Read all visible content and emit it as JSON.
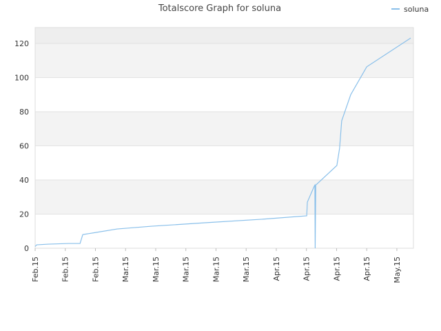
{
  "chart_data": {
    "type": "line",
    "title": "Totalscore Graph for soluna",
    "x": [
      0,
      0.05,
      0.43,
      1.12,
      1.49,
      1.58,
      2.03,
      2.72,
      3.86,
      5.69,
      7.52,
      9.01,
      9.03,
      9.26,
      9.28,
      9.29,
      9.31,
      10.01,
      10.1,
      10.17,
      10.47,
      11.0,
      12.46
    ],
    "series": [
      {
        "name": "soluna",
        "color": "#88bfea",
        "values": [
          1,
          2,
          2.4,
          2.8,
          2.8,
          8,
          9.3,
          11.3,
          12.9,
          15,
          17,
          19,
          27,
          36.4,
          37,
          0,
          37,
          48.5,
          58.6,
          74.7,
          90,
          106.3,
          123.2
        ]
      }
    ],
    "xlim": [
      0,
      12.55
    ],
    "xticks": [
      {
        "value": 0,
        "label": "Feb.15"
      },
      {
        "value": 1,
        "label": "Feb.15"
      },
      {
        "value": 2,
        "label": "Feb.15"
      },
      {
        "value": 3,
        "label": "Mar.15"
      },
      {
        "value": 4,
        "label": "Mar.15"
      },
      {
        "value": 5,
        "label": "Mar.15"
      },
      {
        "value": 6,
        "label": "Mar.15"
      },
      {
        "value": 7,
        "label": "Mar.15"
      },
      {
        "value": 8,
        "label": "Apr.15"
      },
      {
        "value": 9,
        "label": "Apr.15"
      },
      {
        "value": 10,
        "label": "Apr.15"
      },
      {
        "value": 11,
        "label": "Apr.15"
      },
      {
        "value": 12,
        "label": "May.15"
      }
    ],
    "ylim": [
      0,
      129.3
    ],
    "yticks": [
      0,
      20,
      40,
      60,
      80,
      100,
      120
    ],
    "grid": true,
    "legend": "top-right"
  }
}
